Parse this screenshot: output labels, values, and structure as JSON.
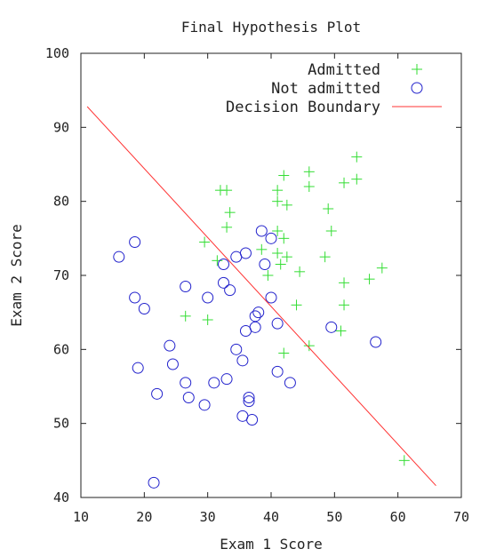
{
  "chart_data": {
    "type": "scatter",
    "title": "Final Hypothesis Plot",
    "xlabel": "Exam 1 Score",
    "ylabel": "Exam 2 Score",
    "xlim": [
      10,
      70
    ],
    "ylim": [
      40,
      100
    ],
    "xticks": [
      10,
      20,
      30,
      40,
      50,
      60,
      70
    ],
    "yticks": [
      40,
      50,
      60,
      70,
      80,
      90,
      100
    ],
    "grid": false,
    "legend_position": "top-right",
    "series": [
      {
        "name": "Admitted",
        "marker": "plus",
        "color": "#33dd33",
        "points": [
          [
            32,
            81.5
          ],
          [
            33,
            81.5
          ],
          [
            42,
            83.5
          ],
          [
            46,
            84
          ],
          [
            53.5,
            86
          ],
          [
            41,
            81.5
          ],
          [
            41,
            80
          ],
          [
            42.5,
            79.5
          ],
          [
            46,
            82
          ],
          [
            51.5,
            82.5
          ],
          [
            53.5,
            83
          ],
          [
            33.5,
            78.5
          ],
          [
            49,
            79
          ],
          [
            33,
            76.5
          ],
          [
            41,
            76
          ],
          [
            42,
            75
          ],
          [
            49.5,
            76
          ],
          [
            29.5,
            74.5
          ],
          [
            38.5,
            73.5
          ],
          [
            41,
            73
          ],
          [
            42.5,
            72.5
          ],
          [
            31.5,
            72
          ],
          [
            41.5,
            71.5
          ],
          [
            39.5,
            70
          ],
          [
            44.5,
            70.5
          ],
          [
            48.5,
            72.5
          ],
          [
            51.5,
            69
          ],
          [
            55.5,
            69.5
          ],
          [
            57.5,
            71
          ],
          [
            44,
            66
          ],
          [
            51.5,
            66
          ],
          [
            26.5,
            64.5
          ],
          [
            30,
            64
          ],
          [
            46,
            60.5
          ],
          [
            42,
            59.5
          ],
          [
            51,
            62.5
          ],
          [
            61,
            45
          ]
        ]
      },
      {
        "name": "Not admitted",
        "marker": "circle",
        "color": "#2222cc",
        "points": [
          [
            16,
            72.5
          ],
          [
            18.5,
            74.5
          ],
          [
            18.5,
            67
          ],
          [
            20,
            65.5
          ],
          [
            26.5,
            68.5
          ],
          [
            32.5,
            71.5
          ],
          [
            34.5,
            72.5
          ],
          [
            36,
            73
          ],
          [
            38.5,
            76
          ],
          [
            40,
            75
          ],
          [
            39,
            71.5
          ],
          [
            32.5,
            69
          ],
          [
            33.5,
            68
          ],
          [
            30,
            67
          ],
          [
            40,
            67
          ],
          [
            38,
            65
          ],
          [
            37.5,
            64.5
          ],
          [
            37.5,
            63
          ],
          [
            36,
            62.5
          ],
          [
            41,
            63.5
          ],
          [
            49.5,
            63
          ],
          [
            56.5,
            61
          ],
          [
            24,
            60.5
          ],
          [
            34.5,
            60
          ],
          [
            35.5,
            58.5
          ],
          [
            24.5,
            58
          ],
          [
            19,
            57.5
          ],
          [
            41,
            57
          ],
          [
            33,
            56
          ],
          [
            31,
            55.5
          ],
          [
            26.5,
            55.5
          ],
          [
            43,
            55.5
          ],
          [
            22,
            54
          ],
          [
            27,
            53.5
          ],
          [
            36.5,
            53.5
          ],
          [
            36.5,
            53
          ],
          [
            29.5,
            52.5
          ],
          [
            35.5,
            51
          ],
          [
            37,
            50.5
          ],
          [
            21.5,
            42
          ]
        ]
      },
      {
        "name": "Decision Boundary",
        "marker": "line",
        "color": "#ff3333",
        "points": [
          [
            11,
            92.8
          ],
          [
            66,
            41.6
          ]
        ]
      }
    ]
  }
}
